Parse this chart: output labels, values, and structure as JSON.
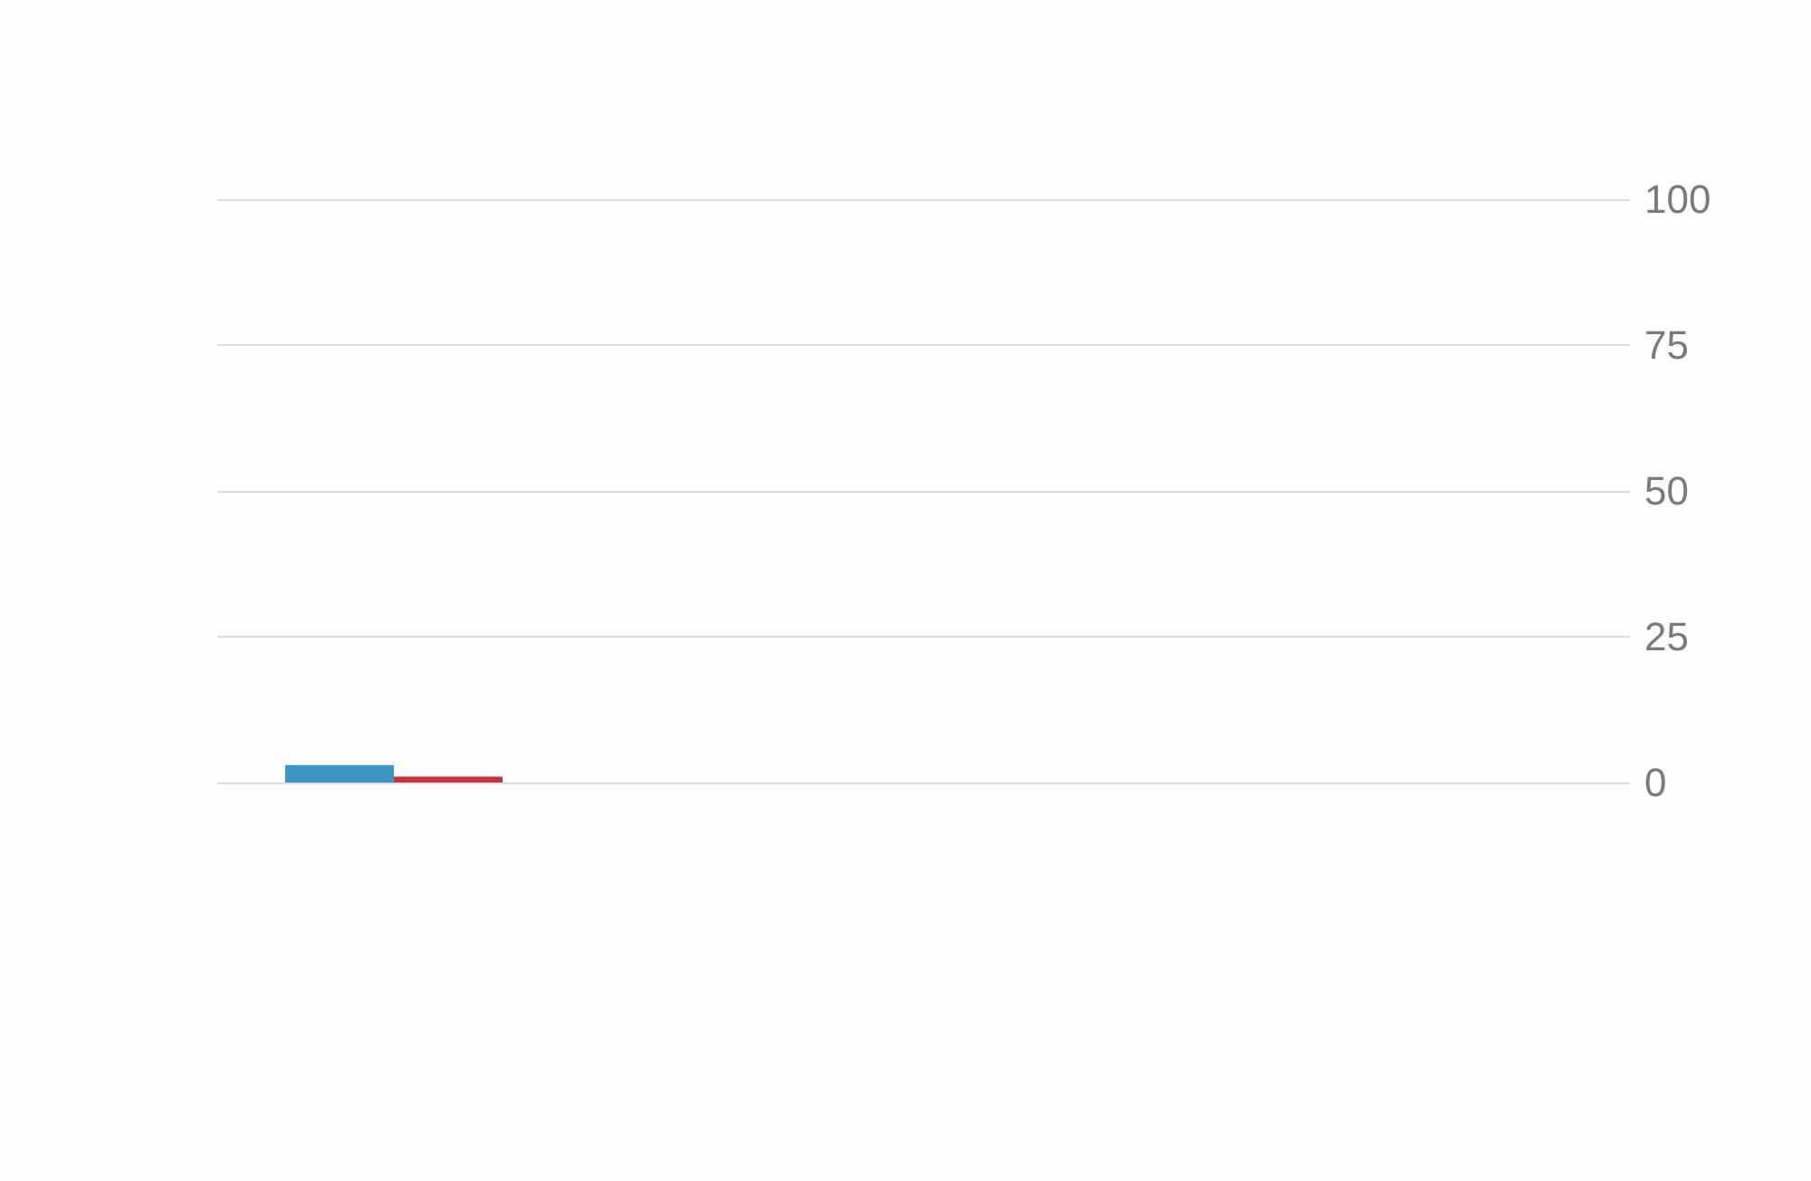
{
  "chart_data": {
    "type": "bar",
    "categories": [
      null,
      null,
      null,
      null
    ],
    "series": [
      {
        "color": "#3a98c2",
        "values": [
          3,
          null,
          null,
          null
        ]
      },
      {
        "color": "#c93040",
        "values": [
          1,
          null,
          null,
          null
        ]
      }
    ],
    "ylim": [
      0,
      100
    ],
    "yticks": [
      0,
      25,
      50,
      75,
      100
    ],
    "grid": "y",
    "tick_labels": "y"
  }
}
